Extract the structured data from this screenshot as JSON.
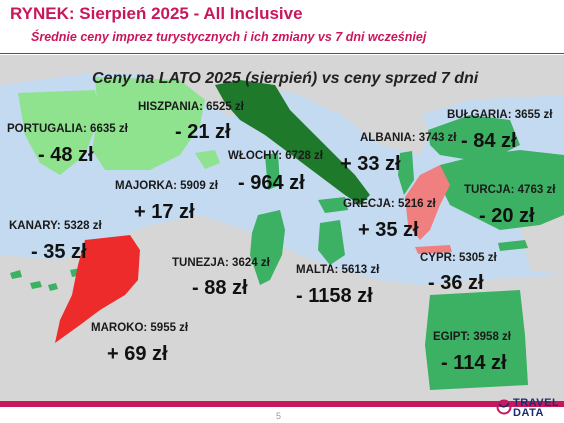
{
  "title": "RYNEK: Sierpień 2025 - All Inclusive",
  "subtitle": "Średnie ceny imprez turystycznych i ich zmiany vs 7 dni wcześniej",
  "map_title": "Ceny na LATO 2025 (sierpień) vs ceny sprzed 7 dni",
  "colors": {
    "brand": "#c8175d",
    "increase": "#ee2b2b",
    "increase_light": "#f08080",
    "decrease_light": "#8fe38f",
    "decrease": "#3cb063",
    "decrease_dark": "#1e7a2a",
    "land": "#d6d6d6",
    "sea": "#c3daf0"
  },
  "countries": [
    {
      "id": "portugalia",
      "label": "PORTUGALIA: 6635 zł",
      "change": "- 48 zł"
    },
    {
      "id": "hiszpania",
      "label": "HISZPANIA: 6525 zł",
      "change": "- 21 zł"
    },
    {
      "id": "majorka",
      "label": "MAJORKA: 5909 zł",
      "change": "+ 17 zł"
    },
    {
      "id": "wlochy",
      "label": "WŁOCHY: 6728 zł",
      "change": "- 964 zł"
    },
    {
      "id": "albania",
      "label": "ALBANIA: 3743 zł",
      "change": "+ 33 zł"
    },
    {
      "id": "bulgaria",
      "label": "BUŁGARIA: 3655 zł",
      "change": "- 84 zł"
    },
    {
      "id": "turcja",
      "label": "TURCJA: 4763 zł",
      "change": "- 20 zł"
    },
    {
      "id": "grecja",
      "label": "GRECJA: 5216 zł",
      "change": "+ 35 zł"
    },
    {
      "id": "kanary",
      "label": "KANARY: 5328 zł",
      "change": "- 35 zł"
    },
    {
      "id": "tunezja",
      "label": "TUNEZJA: 3624 zł",
      "change": "- 88 zł"
    },
    {
      "id": "malta",
      "label": "MALTA: 5613 zł",
      "change": "- 1158 zł"
    },
    {
      "id": "cypr",
      "label": "CYPR: 5305 zł",
      "change": "- 36 zł"
    },
    {
      "id": "maroko",
      "label": "MAROKO: 5955 zł",
      "change": "+ 69 zł"
    },
    {
      "id": "egipt",
      "label": "EGIPT: 3958 zł",
      "change": "- 114 zł"
    }
  ],
  "page_number": "5",
  "logo": {
    "line1": "TRAVEL",
    "line2": "DATA"
  }
}
